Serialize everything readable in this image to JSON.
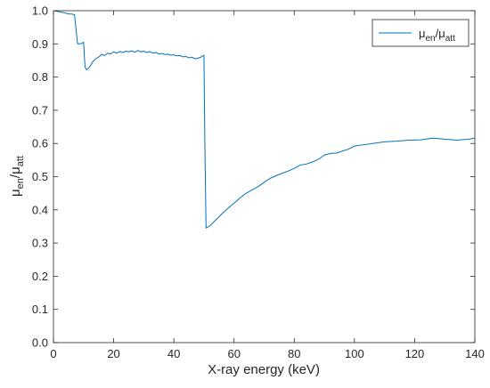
{
  "chart_data": {
    "type": "line",
    "xlabel": "X-ray energy (keV)",
    "ylabel": {
      "base1": "μ",
      "sub1": "en",
      "slash": "/",
      "base2": "μ",
      "sub2": "att"
    },
    "xlim": [
      0,
      140
    ],
    "ylim": [
      0,
      1
    ],
    "xticks": [
      0,
      20,
      40,
      60,
      80,
      100,
      120,
      140
    ],
    "yticks": [
      0.0,
      0.1,
      0.2,
      0.3,
      0.4,
      0.5,
      0.6,
      0.7,
      0.8,
      0.9,
      1.0
    ],
    "ytick_labels": [
      "0.0",
      "0.1",
      "0.2",
      "0.3",
      "0.4",
      "0.5",
      "0.6",
      "0.7",
      "0.8",
      "0.9",
      "1.0"
    ],
    "grid": false,
    "legend_position": "top-right",
    "series": [
      {
        "name": {
          "base1": "μ",
          "sub1": "en",
          "slash": "/",
          "base2": "μ",
          "sub2": "att"
        },
        "color": "#0072BD",
        "points": [
          [
            0.5,
            1.0
          ],
          [
            1,
            0.998
          ],
          [
            2,
            0.997
          ],
          [
            3,
            0.995
          ],
          [
            4,
            0.993
          ],
          [
            5,
            0.99
          ],
          [
            6,
            0.99
          ],
          [
            7,
            0.988
          ],
          [
            8,
            0.9
          ],
          [
            9,
            0.9
          ],
          [
            10,
            0.905
          ],
          [
            10.5,
            0.83
          ],
          [
            11,
            0.822
          ],
          [
            12,
            0.83
          ],
          [
            13,
            0.845
          ],
          [
            14,
            0.855
          ],
          [
            15,
            0.86
          ],
          [
            16,
            0.868
          ],
          [
            17,
            0.865
          ],
          [
            18,
            0.872
          ],
          [
            19,
            0.87
          ],
          [
            20,
            0.876
          ],
          [
            21,
            0.872
          ],
          [
            22,
            0.877
          ],
          [
            23,
            0.874
          ],
          [
            24,
            0.878
          ],
          [
            25,
            0.876
          ],
          [
            26,
            0.879
          ],
          [
            27,
            0.875
          ],
          [
            28,
            0.88
          ],
          [
            29,
            0.876
          ],
          [
            30,
            0.878
          ],
          [
            31,
            0.874
          ],
          [
            32,
            0.877
          ],
          [
            33,
            0.872
          ],
          [
            34,
            0.874
          ],
          [
            35,
            0.87
          ],
          [
            36,
            0.871
          ],
          [
            37,
            0.868
          ],
          [
            38,
            0.869
          ],
          [
            39,
            0.866
          ],
          [
            40,
            0.867
          ],
          [
            41,
            0.864
          ],
          [
            42,
            0.865
          ],
          [
            43,
            0.861
          ],
          [
            44,
            0.862
          ],
          [
            45,
            0.858
          ],
          [
            46,
            0.86
          ],
          [
            47,
            0.855
          ],
          [
            48,
            0.857
          ],
          [
            49,
            0.86
          ],
          [
            50,
            0.866
          ],
          [
            50.3,
            0.6
          ],
          [
            50.7,
            0.345
          ],
          [
            52,
            0.352
          ],
          [
            54,
            0.37
          ],
          [
            56,
            0.388
          ],
          [
            58,
            0.405
          ],
          [
            60,
            0.42
          ],
          [
            62,
            0.436
          ],
          [
            64,
            0.45
          ],
          [
            66,
            0.46
          ],
          [
            68,
            0.47
          ],
          [
            70,
            0.483
          ],
          [
            72,
            0.495
          ],
          [
            74,
            0.503
          ],
          [
            76,
            0.51
          ],
          [
            78,
            0.517
          ],
          [
            80,
            0.525
          ],
          [
            82,
            0.535
          ],
          [
            84,
            0.538
          ],
          [
            86,
            0.544
          ],
          [
            88,
            0.552
          ],
          [
            90,
            0.565
          ],
          [
            92,
            0.57
          ],
          [
            94,
            0.571
          ],
          [
            96,
            0.577
          ],
          [
            98,
            0.583
          ],
          [
            100,
            0.592
          ],
          [
            103,
            0.596
          ],
          [
            106,
            0.6
          ],
          [
            110,
            0.605
          ],
          [
            114,
            0.607
          ],
          [
            118,
            0.61
          ],
          [
            122,
            0.611
          ],
          [
            126,
            0.616
          ],
          [
            130,
            0.613
          ],
          [
            134,
            0.61
          ],
          [
            138,
            0.613
          ],
          [
            140,
            0.616
          ]
        ]
      }
    ]
  }
}
